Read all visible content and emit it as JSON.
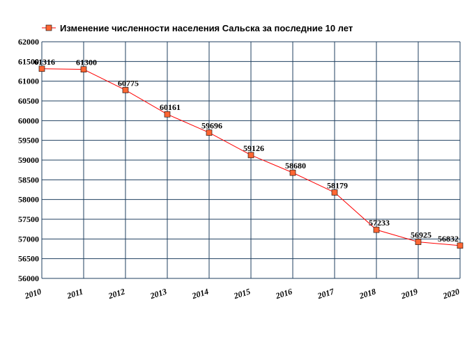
{
  "chart_data": {
    "type": "line",
    "title": "",
    "xlabel": "",
    "ylabel": "",
    "x": [
      "2010",
      "2011",
      "2012",
      "2013",
      "2014",
      "2015",
      "2016",
      "2017",
      "2018",
      "2019",
      "2020"
    ],
    "series": [
      {
        "name": "Изменение численности населения Сальска за последние 10 лет",
        "values": [
          61316,
          61300,
          60775,
          60161,
          59696,
          59126,
          58680,
          58179,
          57233,
          56925,
          56832
        ],
        "labels": [
          "61316",
          "61300",
          "60775",
          "60161",
          "59696",
          "59126",
          "58680",
          "58179",
          "57233",
          "56925",
          "56832"
        ],
        "color": "#ff0000",
        "marker_color": "#ff6633"
      }
    ],
    "ylim": [
      56000,
      62000
    ],
    "yticks": [
      "56000",
      "56500",
      "57000",
      "57500",
      "58000",
      "58500",
      "59000",
      "59500",
      "60000",
      "60500",
      "61000",
      "61500",
      "62000"
    ],
    "grid": true,
    "grid_color": "#1f3f5f",
    "legend": "top-left"
  }
}
